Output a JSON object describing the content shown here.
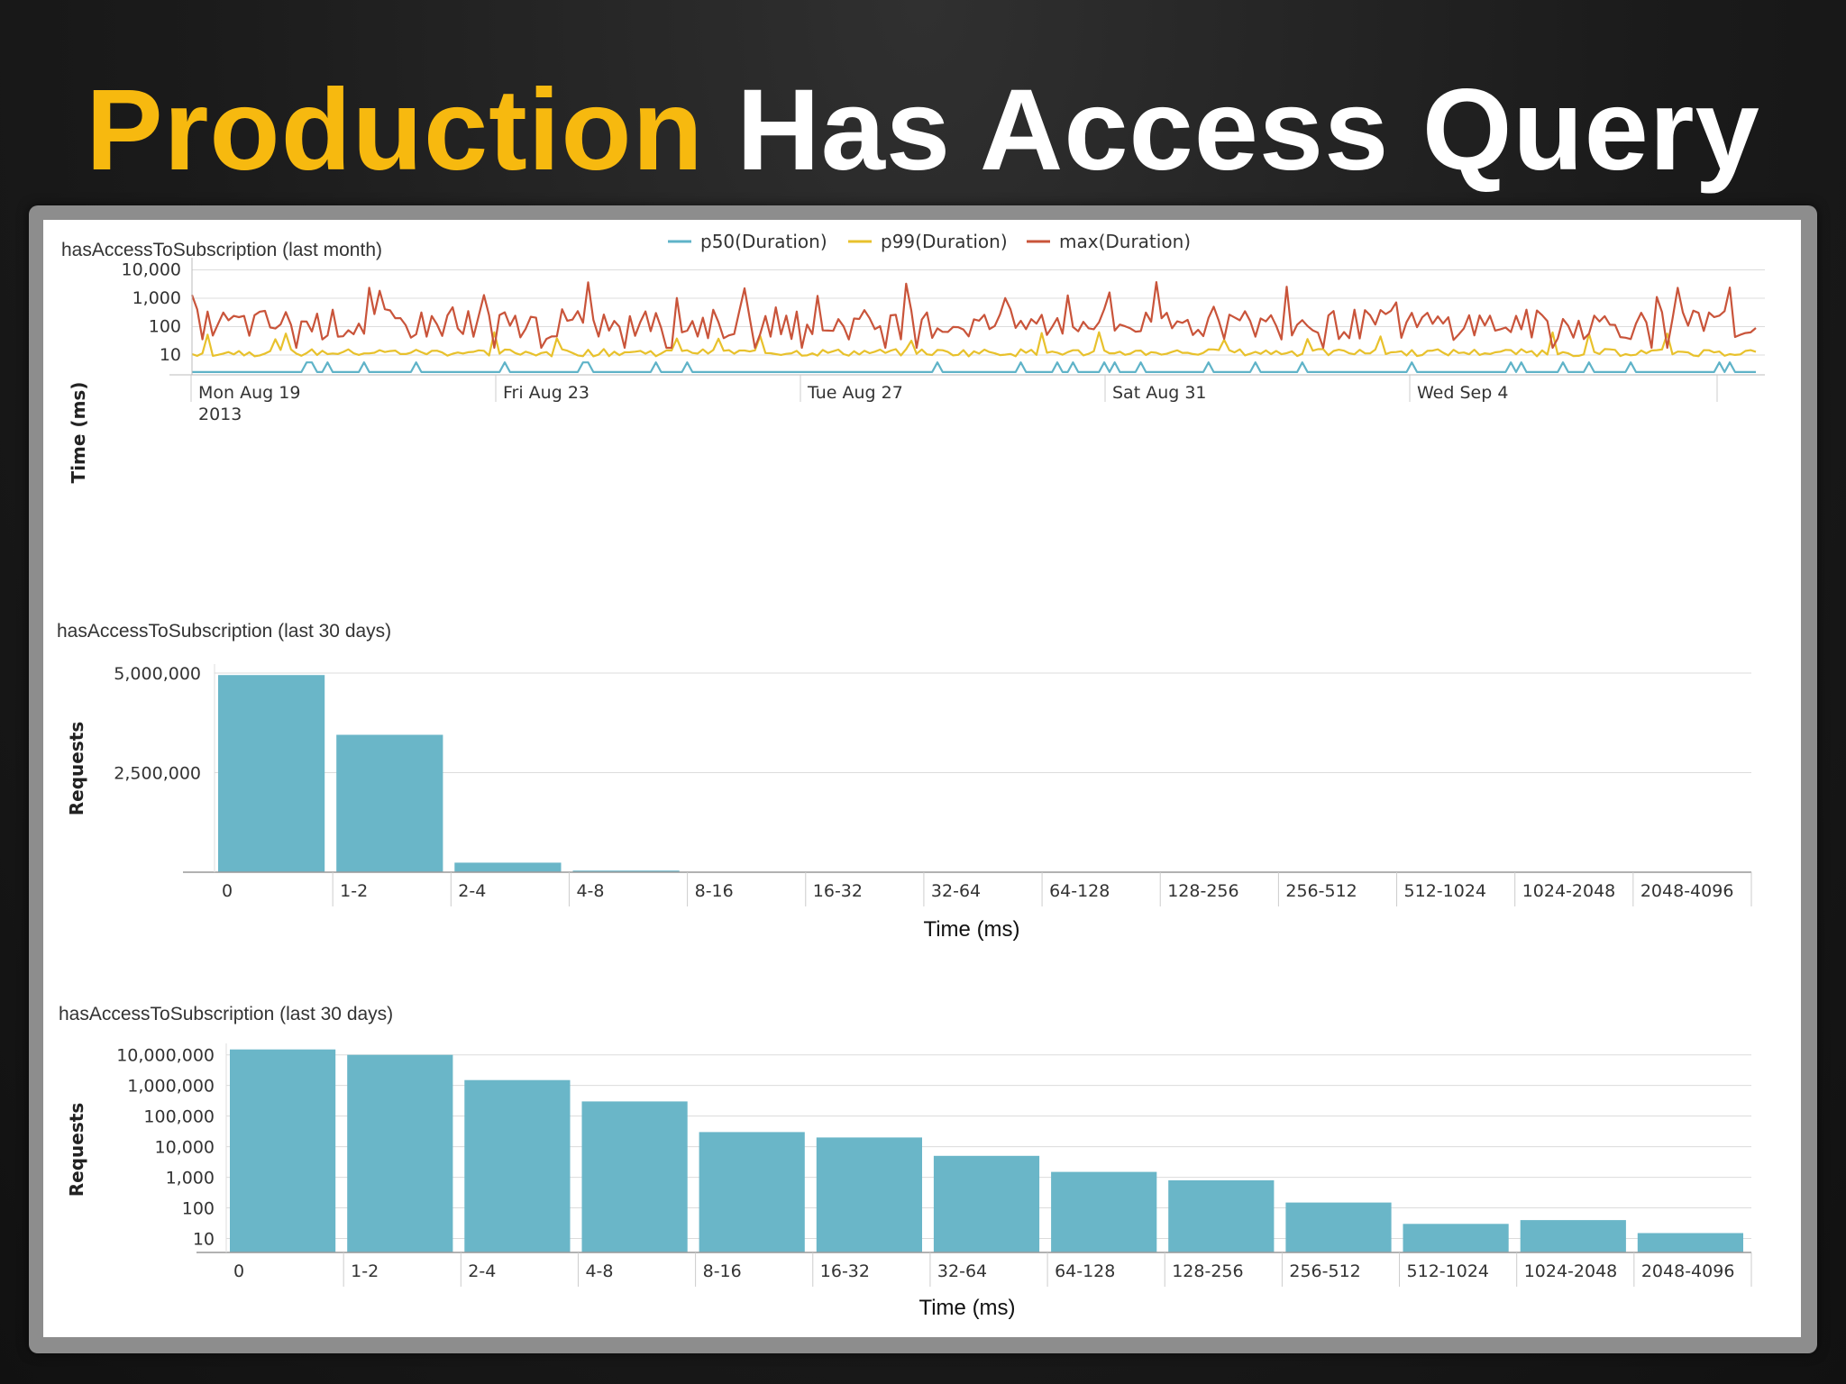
{
  "slide": {
    "title_accent": "Production",
    "title_rest": "Has Access Query"
  },
  "colors": {
    "p50": "#5fb3c8",
    "p99": "#e8c12c",
    "max": "#c9543a",
    "bar": "#6ab6c8",
    "accent": "#f7b90f"
  },
  "chart_data": [
    {
      "type": "line",
      "title": "hasAccessToSubscription (last month)",
      "ylabel": "Time (ms)",
      "y_scale": "log",
      "ylim": [
        2,
        15000
      ],
      "yticks": [
        "10,000",
        "1,000",
        "100",
        "10"
      ],
      "x_ticks": [
        {
          "label": "Mon Aug 19",
          "sub": "2013"
        },
        {
          "label": "Fri Aug 23",
          "sub": ""
        },
        {
          "label": "Tue Aug 27",
          "sub": ""
        },
        {
          "label": "Sat Aug 31",
          "sub": ""
        },
        {
          "label": "Wed Sep 4",
          "sub": ""
        }
      ],
      "legend_position": "top-center",
      "series": [
        {
          "name": "p50(Duration)",
          "typical": 2.5,
          "spikes_to": 5
        },
        {
          "name": "p99(Duration)",
          "typical": 12,
          "spikes_to": 60
        },
        {
          "name": "max(Duration)",
          "typical": 120,
          "spikes_to": 3000
        }
      ]
    },
    {
      "type": "bar",
      "title": "hasAccessToSubscription (last 30 days)",
      "ylabel": "Requests",
      "xlabel": "Time (ms)",
      "ylim": [
        0,
        5000000
      ],
      "yticks": [
        "5,000,000",
        "2,500,000"
      ],
      "ytick_values": [
        5000000,
        2500000
      ],
      "categories": [
        "0",
        "1-2",
        "2-4",
        "4-8",
        "8-16",
        "16-32",
        "32-64",
        "64-128",
        "128-256",
        "256-512",
        "512-1024",
        "1024-2048",
        "2048-4096"
      ],
      "values": [
        4950000,
        3450000,
        240000,
        40000,
        0,
        0,
        0,
        0,
        0,
        0,
        0,
        0,
        0
      ]
    },
    {
      "type": "bar",
      "title": "hasAccessToSubscription (last 30 days)",
      "ylabel": "Requests",
      "xlabel": "Time (ms)",
      "y_scale": "log",
      "yticks": [
        "10,000,000",
        "1,000,000",
        "100,000",
        "10,000",
        "1,000",
        "100",
        "10"
      ],
      "categories": [
        "0",
        "1-2",
        "2-4",
        "4-8",
        "8-16",
        "16-32",
        "32-64",
        "64-128",
        "128-256",
        "256-512",
        "512-1024",
        "1024-2048",
        "2048-4096"
      ],
      "values": [
        15000000,
        10000000,
        1500000,
        300000,
        30000,
        20000,
        5000,
        1500,
        800,
        150,
        30,
        40,
        15
      ]
    }
  ]
}
